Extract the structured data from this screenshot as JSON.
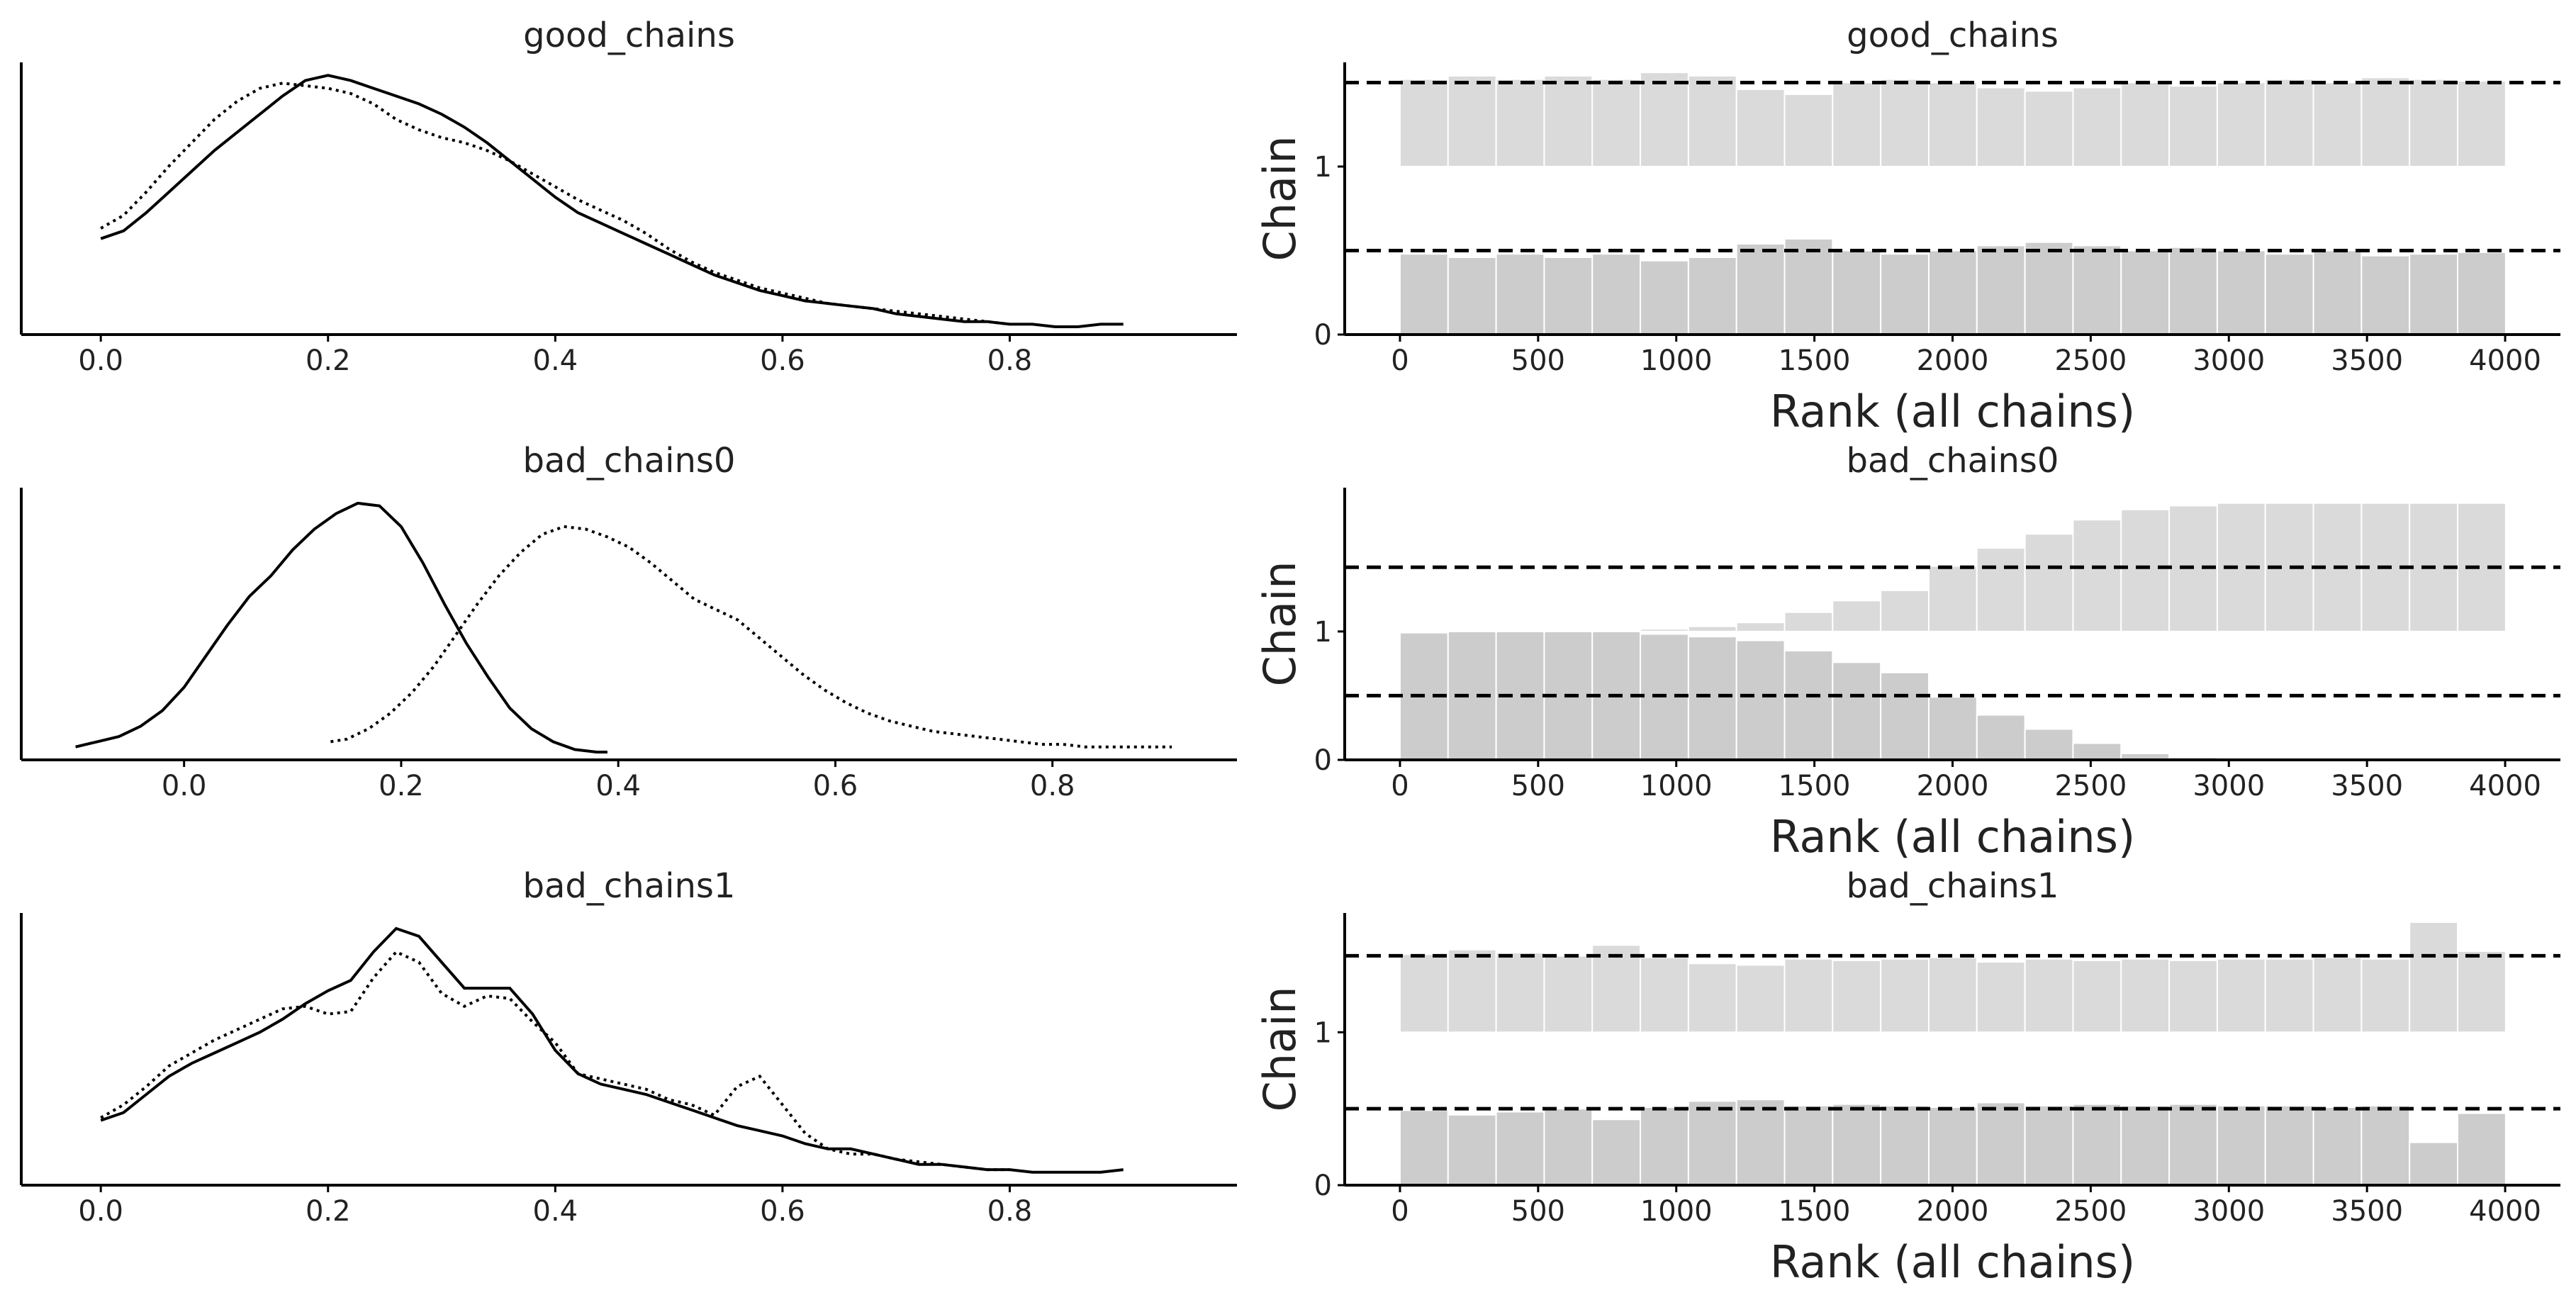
{
  "colors": {
    "chain0_bar": "#cccccc",
    "chain1_bar": "#dadada",
    "line": "#000000"
  },
  "chart_data": [
    {
      "type": "line",
      "title": "good_chains",
      "xlim": [
        -0.07,
        1.0
      ],
      "xticks": [
        0.0,
        0.2,
        0.4,
        0.6,
        0.8
      ],
      "xtick_labels": [
        "0.0",
        "0.2",
        "0.4",
        "0.6",
        "0.8"
      ],
      "ylim": [
        0,
        1.05
      ],
      "series": [
        {
          "style": "solid",
          "x": [
            0.0,
            0.02,
            0.04,
            0.06,
            0.08,
            0.1,
            0.12,
            0.14,
            0.16,
            0.18,
            0.2,
            0.22,
            0.24,
            0.26,
            0.28,
            0.3,
            0.32,
            0.34,
            0.36,
            0.38,
            0.4,
            0.42,
            0.44,
            0.46,
            0.48,
            0.5,
            0.52,
            0.54,
            0.56,
            0.58,
            0.6,
            0.62,
            0.64,
            0.66,
            0.68,
            0.7,
            0.72,
            0.74,
            0.76,
            0.78,
            0.8,
            0.82,
            0.84,
            0.86,
            0.88,
            0.9
          ],
          "y": [
            0.37,
            0.4,
            0.47,
            0.55,
            0.63,
            0.71,
            0.78,
            0.85,
            0.92,
            0.98,
            1.0,
            0.98,
            0.95,
            0.92,
            0.89,
            0.85,
            0.8,
            0.74,
            0.67,
            0.6,
            0.53,
            0.47,
            0.43,
            0.39,
            0.35,
            0.31,
            0.27,
            0.23,
            0.2,
            0.17,
            0.15,
            0.13,
            0.12,
            0.11,
            0.1,
            0.08,
            0.07,
            0.06,
            0.05,
            0.05,
            0.04,
            0.04,
            0.03,
            0.03,
            0.04,
            0.04
          ]
        },
        {
          "style": "dotted",
          "x": [
            0.0,
            0.02,
            0.04,
            0.06,
            0.08,
            0.1,
            0.12,
            0.14,
            0.16,
            0.18,
            0.2,
            0.22,
            0.24,
            0.26,
            0.28,
            0.3,
            0.32,
            0.34,
            0.36,
            0.38,
            0.4,
            0.42,
            0.44,
            0.46,
            0.48,
            0.5,
            0.52,
            0.54,
            0.56,
            0.58,
            0.6,
            0.62,
            0.64,
            0.66,
            0.68,
            0.7,
            0.72,
            0.74,
            0.76,
            0.78,
            0.8
          ],
          "y": [
            0.41,
            0.46,
            0.55,
            0.65,
            0.74,
            0.83,
            0.9,
            0.95,
            0.97,
            0.96,
            0.95,
            0.93,
            0.89,
            0.83,
            0.79,
            0.76,
            0.74,
            0.71,
            0.67,
            0.62,
            0.57,
            0.52,
            0.48,
            0.44,
            0.39,
            0.33,
            0.28,
            0.24,
            0.21,
            0.18,
            0.16,
            0.14,
            0.12,
            0.11,
            0.1,
            0.09,
            0.08,
            0.07,
            0.06,
            0.05,
            0.04
          ]
        }
      ]
    },
    {
      "type": "bar",
      "title": "good_chains",
      "ylabel": "Chain",
      "xlabel": "Rank (all chains)",
      "xlim": [
        -200,
        4200
      ],
      "xticks": [
        0,
        500,
        1000,
        1500,
        2000,
        2500,
        3000,
        3500,
        4000
      ],
      "xtick_labels": [
        "0",
        "500",
        "1000",
        "1500",
        "2000",
        "2500",
        "3000",
        "3500",
        "4000"
      ],
      "ylim": [
        0,
        1.62
      ],
      "yticks": [
        0,
        1
      ],
      "ytick_labels": [
        "0",
        "1"
      ],
      "reference_levels": [
        0.5,
        1.5
      ],
      "bin_edges": [
        0,
        174,
        348,
        522,
        696,
        870,
        1044,
        1218,
        1392,
        1566,
        1740,
        1914,
        2088,
        2262,
        2436,
        2610,
        2784,
        2958,
        3132,
        3306,
        3480,
        3654,
        3828,
        4002
      ],
      "series": [
        {
          "name": "0",
          "offset": 0,
          "values": [
            0.48,
            0.46,
            0.48,
            0.46,
            0.48,
            0.44,
            0.46,
            0.54,
            0.57,
            0.5,
            0.48,
            0.5,
            0.53,
            0.55,
            0.53,
            0.5,
            0.52,
            0.5,
            0.48,
            0.5,
            0.47,
            0.48,
            0.49
          ]
        },
        {
          "name": "1",
          "offset": 1,
          "values": [
            0.52,
            0.54,
            0.52,
            0.54,
            0.52,
            0.56,
            0.54,
            0.46,
            0.43,
            0.5,
            0.52,
            0.5,
            0.47,
            0.45,
            0.47,
            0.5,
            0.48,
            0.5,
            0.52,
            0.5,
            0.53,
            0.52,
            0.51
          ]
        }
      ]
    },
    {
      "type": "line",
      "title": "bad_chains0",
      "xlim": [
        -0.15,
        0.97
      ],
      "xticks": [
        0.0,
        0.2,
        0.4,
        0.6,
        0.8
      ],
      "xtick_labels": [
        "0.0",
        "0.2",
        "0.4",
        "0.6",
        "0.8"
      ],
      "ylim": [
        0,
        1.05
      ],
      "series": [
        {
          "style": "solid",
          "x": [
            -0.1,
            -0.08,
            -0.06,
            -0.04,
            -0.02,
            0.0,
            0.02,
            0.04,
            0.06,
            0.08,
            0.1,
            0.12,
            0.14,
            0.16,
            0.18,
            0.2,
            0.22,
            0.24,
            0.26,
            0.28,
            0.3,
            0.32,
            0.34,
            0.36,
            0.38,
            0.39
          ],
          "y": [
            0.05,
            0.07,
            0.09,
            0.13,
            0.19,
            0.28,
            0.4,
            0.52,
            0.63,
            0.71,
            0.81,
            0.89,
            0.95,
            0.99,
            0.98,
            0.9,
            0.76,
            0.6,
            0.45,
            0.32,
            0.2,
            0.12,
            0.07,
            0.04,
            0.03,
            0.03
          ]
        },
        {
          "style": "dotted",
          "x": [
            0.135,
            0.15,
            0.17,
            0.19,
            0.21,
            0.23,
            0.25,
            0.27,
            0.29,
            0.31,
            0.33,
            0.35,
            0.37,
            0.39,
            0.41,
            0.43,
            0.45,
            0.47,
            0.49,
            0.51,
            0.53,
            0.55,
            0.57,
            0.59,
            0.61,
            0.63,
            0.65,
            0.67,
            0.69,
            0.71,
            0.73,
            0.75,
            0.77,
            0.79,
            0.81,
            0.83,
            0.85,
            0.87,
            0.89,
            0.91
          ],
          "y": [
            0.07,
            0.08,
            0.12,
            0.18,
            0.26,
            0.36,
            0.48,
            0.6,
            0.71,
            0.8,
            0.87,
            0.9,
            0.89,
            0.86,
            0.82,
            0.76,
            0.69,
            0.62,
            0.58,
            0.54,
            0.47,
            0.4,
            0.33,
            0.27,
            0.22,
            0.18,
            0.15,
            0.13,
            0.11,
            0.1,
            0.09,
            0.08,
            0.07,
            0.06,
            0.06,
            0.05,
            0.05,
            0.05,
            0.05,
            0.05
          ]
        }
      ]
    },
    {
      "type": "bar",
      "title": "bad_chains0",
      "ylabel": "Chain",
      "xlabel": "Rank (all chains)",
      "xlim": [
        -200,
        4200
      ],
      "xticks": [
        0,
        500,
        1000,
        1500,
        2000,
        2500,
        3000,
        3500,
        4000
      ],
      "xtick_labels": [
        "0",
        "500",
        "1000",
        "1500",
        "2000",
        "2500",
        "3000",
        "3500",
        "4000"
      ],
      "ylim": [
        0,
        2.12
      ],
      "yticks": [
        0,
        1
      ],
      "ytick_labels": [
        "0",
        "1"
      ],
      "reference_levels": [
        0.5,
        1.5
      ],
      "bin_edges": [
        0,
        174,
        348,
        522,
        696,
        870,
        1044,
        1218,
        1392,
        1566,
        1740,
        1914,
        2088,
        2262,
        2436,
        2610,
        2784,
        2958,
        3132,
        3306,
        3480,
        3654,
        3828,
        4002
      ],
      "series": [
        {
          "name": "0",
          "offset": 0,
          "values": [
            0.99,
            1.0,
            1.0,
            1.0,
            1.0,
            0.98,
            0.96,
            0.93,
            0.85,
            0.76,
            0.68,
            0.49,
            0.35,
            0.24,
            0.13,
            0.05,
            0.02,
            0.0,
            0.0,
            0.0,
            0.0,
            0.0,
            0.0
          ]
        },
        {
          "name": "1",
          "offset": 1,
          "values": [
            0.01,
            0.0,
            0.0,
            0.0,
            0.0,
            0.02,
            0.04,
            0.07,
            0.15,
            0.24,
            0.32,
            0.51,
            0.65,
            0.76,
            0.87,
            0.95,
            0.98,
            1.0,
            1.0,
            1.0,
            1.0,
            1.0,
            1.0
          ]
        }
      ]
    },
    {
      "type": "line",
      "title": "bad_chains1",
      "xlim": [
        -0.07,
        1.0
      ],
      "xticks": [
        0.0,
        0.2,
        0.4,
        0.6,
        0.8
      ],
      "xtick_labels": [
        "0.0",
        "0.2",
        "0.4",
        "0.6",
        "0.8"
      ],
      "ylim": [
        0,
        1.05
      ],
      "series": [
        {
          "style": "solid",
          "x": [
            0.0,
            0.02,
            0.04,
            0.06,
            0.08,
            0.1,
            0.12,
            0.14,
            0.16,
            0.18,
            0.2,
            0.22,
            0.24,
            0.26,
            0.28,
            0.3,
            0.32,
            0.34,
            0.36,
            0.38,
            0.4,
            0.42,
            0.44,
            0.46,
            0.48,
            0.5,
            0.52,
            0.54,
            0.56,
            0.58,
            0.6,
            0.62,
            0.64,
            0.66,
            0.68,
            0.7,
            0.72,
            0.74,
            0.76,
            0.78,
            0.8,
            0.82,
            0.84,
            0.86,
            0.88,
            0.9
          ],
          "y": [
            0.25,
            0.28,
            0.35,
            0.42,
            0.47,
            0.51,
            0.55,
            0.59,
            0.64,
            0.7,
            0.75,
            0.79,
            0.9,
            0.99,
            0.96,
            0.86,
            0.76,
            0.76,
            0.76,
            0.66,
            0.52,
            0.43,
            0.39,
            0.37,
            0.35,
            0.32,
            0.29,
            0.26,
            0.23,
            0.21,
            0.19,
            0.16,
            0.14,
            0.14,
            0.12,
            0.1,
            0.08,
            0.08,
            0.07,
            0.06,
            0.06,
            0.05,
            0.05,
            0.05,
            0.05,
            0.06
          ]
        },
        {
          "style": "dotted",
          "x": [
            0.0,
            0.02,
            0.04,
            0.06,
            0.08,
            0.1,
            0.12,
            0.14,
            0.16,
            0.18,
            0.2,
            0.22,
            0.24,
            0.26,
            0.28,
            0.3,
            0.32,
            0.34,
            0.36,
            0.38,
            0.4,
            0.42,
            0.44,
            0.46,
            0.48,
            0.5,
            0.52,
            0.54,
            0.56,
            0.58,
            0.6,
            0.62,
            0.64,
            0.66,
            0.68,
            0.7,
            0.72,
            0.74,
            0.76,
            0.78,
            0.8
          ],
          "y": [
            0.26,
            0.31,
            0.38,
            0.46,
            0.51,
            0.56,
            0.6,
            0.64,
            0.68,
            0.69,
            0.66,
            0.67,
            0.8,
            0.9,
            0.86,
            0.74,
            0.69,
            0.73,
            0.72,
            0.63,
            0.55,
            0.43,
            0.41,
            0.39,
            0.37,
            0.33,
            0.31,
            0.27,
            0.38,
            0.42,
            0.31,
            0.2,
            0.14,
            0.12,
            0.12,
            0.1,
            0.09,
            0.08,
            0.07,
            0.06,
            0.06
          ]
        }
      ]
    },
    {
      "type": "bar",
      "title": "bad_chains1",
      "ylabel": "Chain",
      "xlabel": "Rank (all chains)",
      "xlim": [
        -200,
        4200
      ],
      "xticks": [
        0,
        500,
        1000,
        1500,
        2000,
        2500,
        3000,
        3500,
        4000
      ],
      "xtick_labels": [
        "0",
        "500",
        "1000",
        "1500",
        "2000",
        "2500",
        "3000",
        "3500",
        "4000"
      ],
      "ylim": [
        0,
        1.78
      ],
      "yticks": [
        0,
        1
      ],
      "ytick_labels": [
        "0",
        "1"
      ],
      "reference_levels": [
        0.5,
        1.5
      ],
      "bin_edges": [
        0,
        174,
        348,
        522,
        696,
        870,
        1044,
        1218,
        1392,
        1566,
        1740,
        1914,
        2088,
        2262,
        2436,
        2610,
        2784,
        2958,
        3132,
        3306,
        3480,
        3654,
        3828,
        4002
      ],
      "series": [
        {
          "name": "0",
          "offset": 0,
          "values": [
            0.49,
            0.46,
            0.48,
            0.5,
            0.43,
            0.51,
            0.55,
            0.56,
            0.52,
            0.53,
            0.52,
            0.51,
            0.54,
            0.52,
            0.53,
            0.52,
            0.53,
            0.52,
            0.52,
            0.51,
            0.52,
            0.28,
            0.47
          ]
        },
        {
          "name": "1",
          "offset": 1,
          "values": [
            0.51,
            0.54,
            0.52,
            0.5,
            0.57,
            0.49,
            0.45,
            0.44,
            0.48,
            0.47,
            0.48,
            0.49,
            0.46,
            0.48,
            0.47,
            0.48,
            0.47,
            0.48,
            0.48,
            0.49,
            0.48,
            0.72,
            0.53
          ]
        }
      ]
    }
  ]
}
